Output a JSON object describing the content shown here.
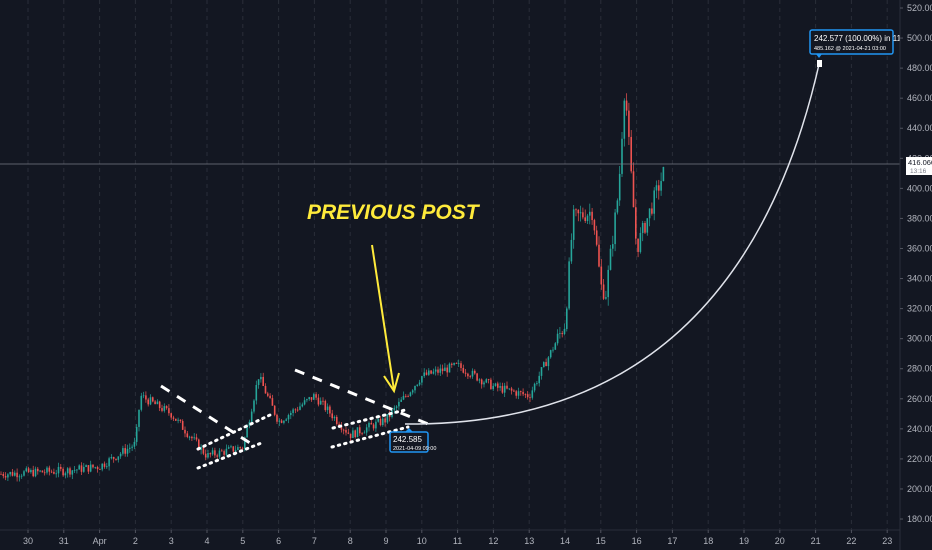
{
  "chart_data": {
    "type": "candlestick",
    "title": "",
    "annotation_text": "PREVIOUS POST",
    "xlabel": "",
    "ylabel": "",
    "ylim": [
      180,
      520
    ],
    "grid": "vertical dashed",
    "y_ticks": [
      "520.000",
      "500.000",
      "480.000",
      "460.000",
      "440.000",
      "420.000",
      "400.000",
      "380.000",
      "360.000",
      "340.000",
      "320.000",
      "300.000",
      "280.000",
      "260.000",
      "240.000",
      "220.000",
      "200.000",
      "180.000"
    ],
    "x_ticks": [
      "30",
      "31",
      "Apr",
      "2",
      "3",
      "4",
      "5",
      "6",
      "7",
      "8",
      "9",
      "10",
      "11",
      "12",
      "13",
      "14",
      "15",
      "16",
      "17",
      "18",
      "19",
      "20",
      "21",
      "22",
      "23"
    ],
    "current_price": {
      "value": "416.060",
      "countdown": "13:16"
    },
    "measure_start": {
      "price": "242.585",
      "datetime": "2021-04-09 09:00"
    },
    "measure_end": {
      "label": "242.577 (100.00%) in 11d 18h",
      "sub": "485.162 @ 2021-04-21  03:00"
    },
    "approx_close_path": [
      {
        "day": "Mar 30",
        "close": 210
      },
      {
        "day": "Mar 31",
        "close": 212
      },
      {
        "day": "Apr 1",
        "close": 215
      },
      {
        "day": "Apr 2",
        "close": 230
      },
      {
        "day": "Apr 3",
        "close": 250
      },
      {
        "day": "Apr 4",
        "close": 222
      },
      {
        "day": "Apr 5",
        "close": 228
      },
      {
        "day": "Apr 6",
        "close": 245
      },
      {
        "day": "Apr 7",
        "close": 262
      },
      {
        "day": "Apr 8",
        "close": 236
      },
      {
        "day": "Apr 9",
        "close": 246
      },
      {
        "day": "Apr 10",
        "close": 275
      },
      {
        "day": "Apr 11",
        "close": 282
      },
      {
        "day": "Apr 12",
        "close": 268
      },
      {
        "day": "Apr 13",
        "close": 262
      },
      {
        "day": "Apr 14",
        "close": 310
      },
      {
        "day": "Apr 15",
        "close": 335
      },
      {
        "day": "Apr 16",
        "close": 360
      },
      {
        "day": "Apr 16 late",
        "close": 416
      }
    ],
    "colors": {
      "up": "#26a69a",
      "down": "#ef5350",
      "bg": "#131722",
      "annot": "#ffeb3b",
      "measure": "#2196f3"
    }
  },
  "ui": {
    "annotation_text": "PREVIOUS POST",
    "price_label": "416.060",
    "price_countdown": "13:16",
    "start_box_price": "242.585",
    "start_box_date": "2021-04-09 09:00",
    "end_box_line1": "242.577 (100.00%) in 11d 18h",
    "end_box_line2": "485.162 @ 2021-04-21  03:00"
  }
}
